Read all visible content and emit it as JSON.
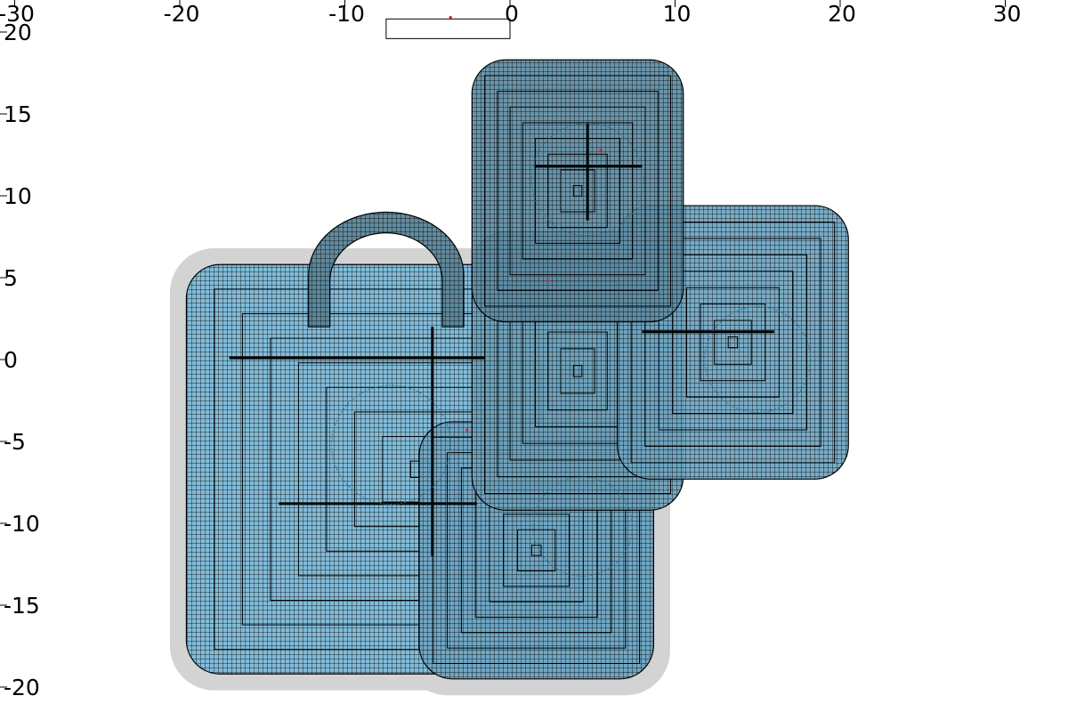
{
  "chart_data": {
    "type": "scatter",
    "title": "",
    "xlabel": "",
    "ylabel": "",
    "xlim": [
      -30,
      30
    ],
    "ylim": [
      -20,
      20
    ],
    "grid": false,
    "x_ticks": [
      -30,
      -20,
      -10,
      0,
      10,
      20,
      30
    ],
    "y_ticks": [
      20,
      15,
      10,
      5,
      0,
      -5,
      -10,
      -15,
      -20
    ],
    "x_tick_labels": [
      "-30",
      "-20",
      "-10",
      "0",
      "10",
      "20",
      "30"
    ],
    "y_tick_labels": [
      "20",
      "15",
      "10",
      "5",
      "0",
      "-5",
      "-10",
      "-15",
      "-20"
    ],
    "footprint_color": "#d3d3d3",
    "shapes": [
      {
        "name": "",
        "kind": "rounded-rect",
        "x_range": [
          -19.6,
          8.7
        ],
        "y_range": [
          -19.2,
          5.8
        ],
        "fill": "#7bb8d8",
        "grid": true
      },
      {
        "name": "",
        "kind": "rounded-rect",
        "x_range": [
          -5.5,
          8.7
        ],
        "y_range": [
          -19.5,
          -3.8
        ],
        "fill": "#6fa5c2",
        "grid": true
      },
      {
        "name": "",
        "kind": "rounded-rect",
        "x_range": [
          -2.3,
          10.5
        ],
        "y_range": [
          -9.2,
          7.8
        ],
        "fill": "#6d9fb8",
        "grid": true
      },
      {
        "name": "",
        "kind": "rounded-rect",
        "x_range": [
          6.5,
          20.5
        ],
        "y_range": [
          -7.3,
          9.4
        ],
        "fill": "#6ea4c0",
        "grid": true
      },
      {
        "name": "",
        "kind": "rounded-rect",
        "x_range": [
          -2.3,
          10.5
        ],
        "y_range": [
          2.3,
          18.3
        ],
        "fill": "#5d8ba2",
        "grid": true
      },
      {
        "name": "",
        "kind": "arch",
        "x_range": [
          -12.2,
          -2.8
        ],
        "y_range": [
          2.0,
          9.0
        ],
        "fill": "#5b8599",
        "grid": true
      }
    ],
    "centers": [
      {
        "x": -2.6,
        "y": -4.3
      },
      {
        "x": 2.3,
        "y": 4.8
      },
      {
        "x": 5.5,
        "y": 12.8
      },
      {
        "x": -3.6,
        "y": 20.9
      }
    ],
    "circles": [
      {
        "cx": -7.2,
        "cy": -5.2,
        "r": 3.6
      },
      {
        "cx": 4.4,
        "cy": -10.2,
        "r": 3.0
      },
      {
        "cx": 15.0,
        "cy": 0.0,
        "r": 3.2
      },
      {
        "cx": 4.7,
        "cy": 11.0,
        "r": 3.4
      }
    ],
    "inset_box": {
      "x_range": [
        -7.5,
        0.0
      ],
      "y_range": [
        19.6,
        20.8
      ]
    }
  }
}
